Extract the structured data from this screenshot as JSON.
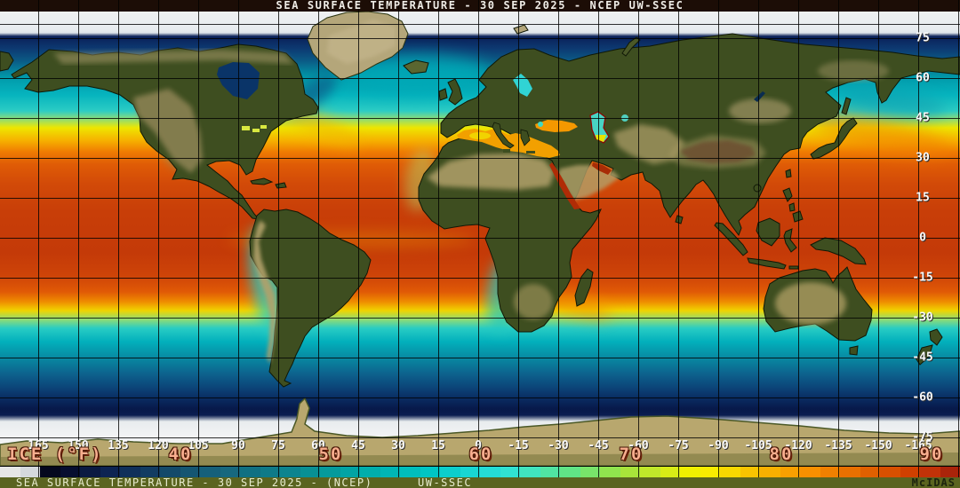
{
  "title_bar": {
    "text": "SEA SURFACE TEMPERATURE - 30 SEP 2025 - NCEP UW-SSEC"
  },
  "map": {
    "lat_labels": [
      "75",
      "60",
      "45",
      "30",
      "15",
      "0",
      "-15",
      "-30",
      "-45",
      "-60",
      "-75"
    ],
    "lon_labels": [
      "165",
      "150",
      "135",
      "120",
      "105",
      "90",
      "75",
      "60",
      "45",
      "30",
      "15",
      "0",
      "-15",
      "-30",
      "-45",
      "-60",
      "-75",
      "-90",
      "-105",
      "-120",
      "-135",
      "-150",
      "-165"
    ],
    "grid_spacing_deg": 15
  },
  "scale": {
    "ice_label": "ICE (°F)",
    "unit": "°F",
    "tick_labels": [
      "40",
      "50",
      "60",
      "70",
      "80",
      "90"
    ],
    "label_color": "#f8ae8e",
    "colorbar_colors": [
      "#e6e6e6",
      "#d4d8dc",
      "#05081e",
      "#070e30",
      "#0a1a42",
      "#0d2452",
      "#10305a",
      "#123c62",
      "#144a6a",
      "#155672",
      "#16607a",
      "#17687e",
      "#107082",
      "#0e7a88",
      "#0c848e",
      "#089094",
      "#059a9c",
      "#02a4a4",
      "#00aeac",
      "#00b6b4",
      "#00bebc",
      "#00c6c4",
      "#0ccecc",
      "#18d6d2",
      "#24dcd6",
      "#30e2d2",
      "#40e4be",
      "#50e4a2",
      "#60e486",
      "#78e46a",
      "#90e44e",
      "#a8e43a",
      "#c0e82a",
      "#d8ec16",
      "#f0f000",
      "#f8ec00",
      "#f8d800",
      "#f8c400",
      "#f8b000",
      "#f8a000",
      "#f89000",
      "#f08000",
      "#e87000",
      "#e06000",
      "#d85000",
      "#d04000",
      "#c23208",
      "#aa240a"
    ]
  },
  "bottom_bar": {
    "product_text": "SEA SURFACE TEMPERATURE - 30 SEP 2025 - (NCEP)",
    "source_text": "UW-SSEC",
    "brand_text": "McIDAS"
  },
  "colors": {
    "title_bg": "#1c0d06",
    "footer_bg": "#5a6420",
    "land_green": "#3e4e20",
    "land_tan": "#b2a16a",
    "ice_white": "#eef0f2",
    "equator_red": "#c43a08",
    "grid_line": "#000000"
  }
}
